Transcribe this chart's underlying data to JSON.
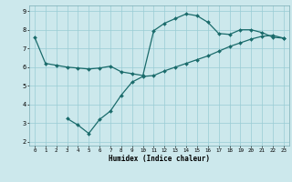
{
  "xlabel": "Humidex (Indice chaleur)",
  "bg_color": "#cce8ec",
  "grid_color": "#99ccd4",
  "line_color": "#1a6b6b",
  "xlim": [
    -0.5,
    23.5
  ],
  "ylim": [
    1.8,
    9.3
  ],
  "xticks": [
    0,
    1,
    2,
    3,
    4,
    5,
    6,
    7,
    8,
    9,
    10,
    11,
    12,
    13,
    14,
    15,
    16,
    17,
    18,
    19,
    20,
    21,
    22,
    23
  ],
  "yticks": [
    2,
    3,
    4,
    5,
    6,
    7,
    8,
    9
  ],
  "line1_x": [
    0,
    1,
    2,
    3,
    4,
    5,
    6,
    7,
    8,
    9,
    10,
    11,
    12,
    13,
    14,
    15,
    16,
    17,
    18,
    19,
    20,
    21,
    22,
    23
  ],
  "line1_y": [
    7.6,
    6.2,
    6.1,
    6.0,
    5.95,
    5.9,
    5.95,
    6.05,
    5.75,
    5.65,
    5.55,
    7.95,
    8.35,
    8.6,
    8.85,
    8.75,
    8.4,
    7.8,
    7.75,
    8.0,
    8.0,
    7.85,
    7.6,
    7.55
  ],
  "line2_x": [
    3,
    4,
    5,
    6,
    7,
    8,
    9,
    10,
    11,
    12,
    13,
    14,
    15,
    16,
    17,
    18,
    19,
    20,
    21,
    22,
    23
  ],
  "line2_y": [
    3.25,
    2.9,
    2.45,
    3.2,
    3.65,
    4.5,
    5.2,
    5.5,
    5.55,
    5.8,
    6.0,
    6.2,
    6.4,
    6.6,
    6.85,
    7.1,
    7.3,
    7.5,
    7.65,
    7.7,
    7.55
  ]
}
